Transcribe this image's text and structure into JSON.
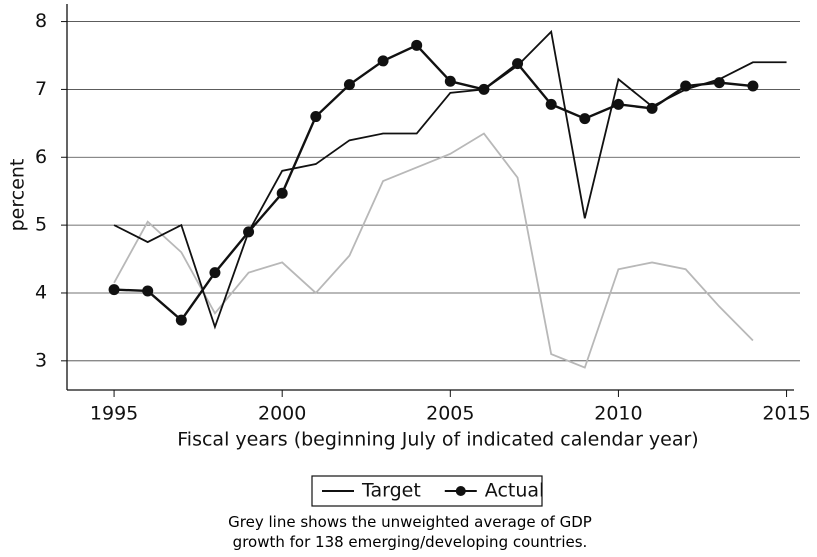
{
  "chart_data": {
    "type": "line",
    "x_label": "Fiscal years (beginning July of indicated calendar year)",
    "y_label": "percent",
    "note": "Grey line shows the unweighted average of GDP growth for 138 emerging/developing countries.",
    "x": [
      1995,
      1996,
      1997,
      1998,
      1999,
      2000,
      2001,
      2002,
      2003,
      2004,
      2005,
      2006,
      2007,
      2008,
      2009,
      2010,
      2011,
      2012,
      2013,
      2014,
      2015
    ],
    "series": [
      {
        "name": "Target",
        "color": "#111111",
        "marker": false,
        "values": [
          5.0,
          4.75,
          5.0,
          3.5,
          4.9,
          5.8,
          5.9,
          6.25,
          6.35,
          6.35,
          6.95,
          7.0,
          7.35,
          7.85,
          5.1,
          7.15,
          6.75,
          7.0,
          7.15,
          7.4,
          7.4
        ]
      },
      {
        "name": "Actual",
        "color": "#111111",
        "marker": true,
        "values": [
          4.05,
          4.03,
          3.6,
          4.3,
          4.9,
          5.47,
          6.6,
          7.07,
          7.42,
          7.65,
          7.12,
          7.0,
          7.38,
          6.78,
          6.57,
          6.78,
          6.72,
          7.05,
          7.1,
          7.05,
          null
        ]
      },
      {
        "color": "#b8b8b8",
        "marker": false,
        "values": [
          4.15,
          5.05,
          4.6,
          3.7,
          4.3,
          4.45,
          4.0,
          4.55,
          5.65,
          5.85,
          6.05,
          6.35,
          5.7,
          3.1,
          2.9,
          4.35,
          4.45,
          4.35,
          3.8,
          3.3,
          null
        ]
      }
    ],
    "xlim": [
      1993.6,
      2015.4
    ],
    "xticks": [
      1995,
      2000,
      2005,
      2010,
      2015
    ],
    "ylim": [
      2.57,
      8.2
    ],
    "yticks": [
      3,
      4,
      5,
      6,
      7,
      8
    ],
    "grid": true
  }
}
